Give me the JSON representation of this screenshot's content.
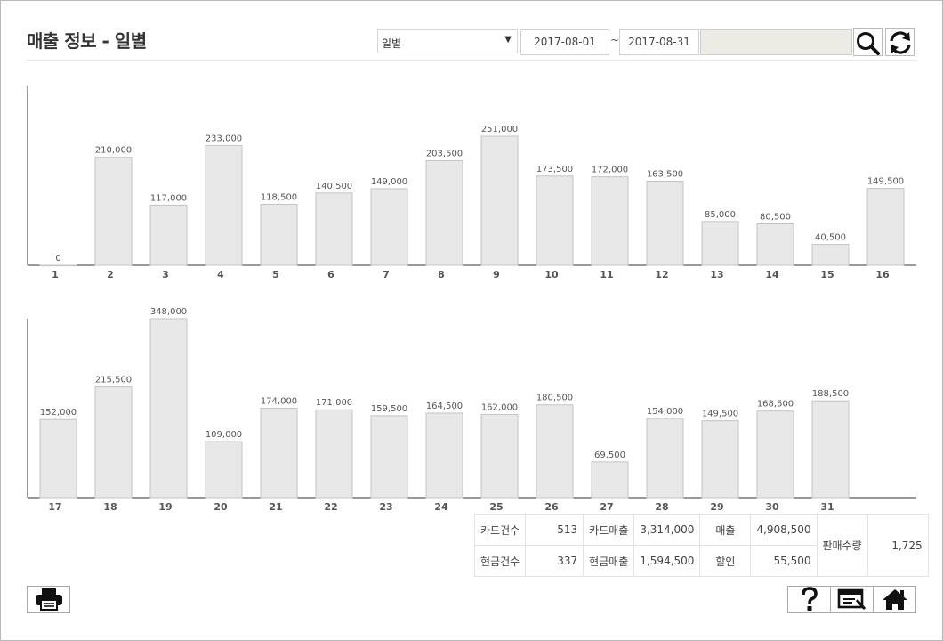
{
  "page": {
    "title": "매출 정보 - 일별"
  },
  "filters": {
    "period_select": {
      "value": "일별",
      "arrow": "▼"
    },
    "date_from": "2017-08-01",
    "date_sep": "~",
    "date_to": "2017-08-31",
    "search_value": ""
  },
  "buttons": {
    "search": "search-icon",
    "refresh": "refresh-icon",
    "print": "printer-icon",
    "help": "question-icon",
    "edit": "edit-window-icon",
    "home": "home-icon"
  },
  "colors": {
    "bar_fill": "#e8e8e8",
    "bar_stroke": "#c4c4c4",
    "axis": "#333333",
    "text": "#555555"
  },
  "chart_data": [
    {
      "type": "bar",
      "categories": [
        "1",
        "2",
        "3",
        "4",
        "5",
        "6",
        "7",
        "8",
        "9",
        "10",
        "11",
        "12",
        "13",
        "14",
        "15",
        "16"
      ],
      "values": [
        0,
        210000,
        117000,
        233000,
        118500,
        140500,
        149000,
        203500,
        251000,
        173500,
        172000,
        163500,
        85000,
        80500,
        40500,
        149500
      ],
      "value_labels": [
        "0",
        "210,000",
        "117,000",
        "233,000",
        "118,500",
        "140,500",
        "149,000",
        "203,500",
        "251,000",
        "173,500",
        "172,000",
        "163,500",
        "85,000",
        "80,500",
        "40,500",
        "149,500"
      ],
      "title": "",
      "xlabel": "",
      "ylabel": "",
      "ylim": [
        0,
        251000
      ],
      "grid": false,
      "legend": "none"
    },
    {
      "type": "bar",
      "categories": [
        "17",
        "18",
        "19",
        "20",
        "21",
        "22",
        "23",
        "24",
        "25",
        "26",
        "27",
        "28",
        "29",
        "30",
        "31"
      ],
      "values": [
        152000,
        215500,
        348000,
        109000,
        174000,
        171000,
        159500,
        164500,
        162000,
        180500,
        69500,
        154000,
        149500,
        168500,
        188500
      ],
      "value_labels": [
        "152,000",
        "215,500",
        "348,000",
        "109,000",
        "174,000",
        "171,000",
        "159,500",
        "164,500",
        "162,000",
        "180,500",
        "69,500",
        "154,000",
        "149,500",
        "168,500",
        "188,500"
      ],
      "title": "",
      "xlabel": "",
      "ylabel": "",
      "ylim": [
        0,
        348000
      ],
      "grid": false,
      "legend": "none"
    }
  ],
  "summary": {
    "card_count_label": "카드건수",
    "card_count": "513",
    "card_sales_label": "카드매출",
    "card_sales": "3,314,000",
    "sales_label": "매출",
    "sales": "4,908,500",
    "cash_count_label": "현금건수",
    "cash_count": "337",
    "cash_sales_label": "현금매출",
    "cash_sales": "1,594,500",
    "discount_label": "할인",
    "discount": "55,500",
    "qty_label": "판매수량",
    "qty": "1,725"
  }
}
